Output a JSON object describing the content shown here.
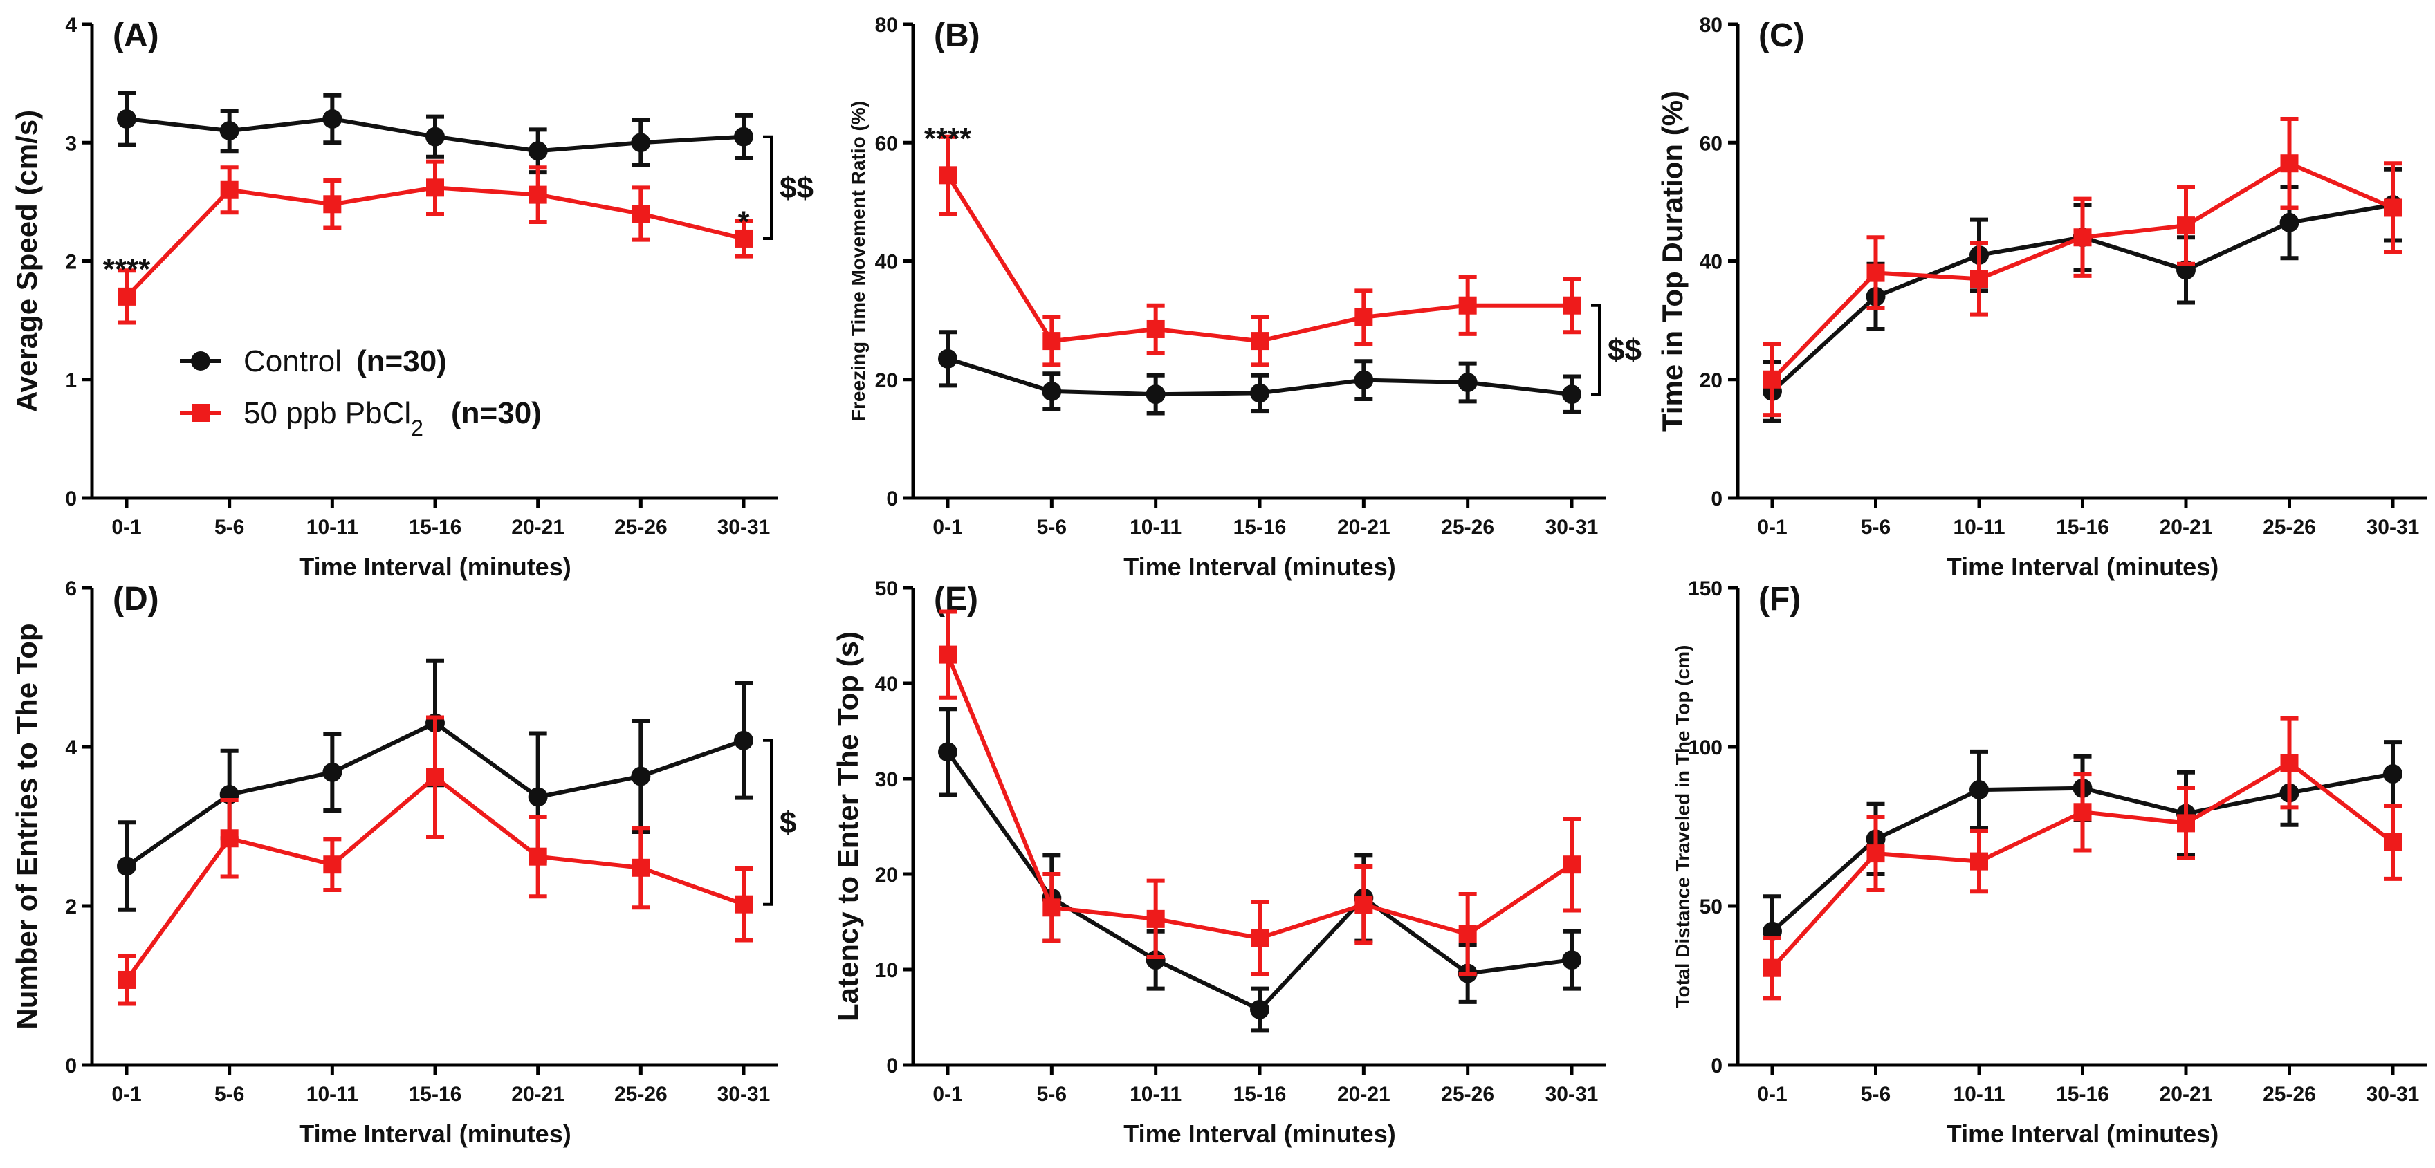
{
  "colors": {
    "control": "#111111",
    "lead": "#ee1b1b"
  },
  "legend": {
    "control_label": "Control",
    "control_n": "(n=30)",
    "lead_label_prefix": "50 ppb PbCl",
    "lead_label_sub": "2",
    "lead_n": "(n=30)"
  },
  "chart_data": [
    {
      "id": "A",
      "type": "line",
      "panel_label": "(A)",
      "xlabel": "Time Interval (minutes)",
      "ylabel": "Average Speed (cm/s)",
      "ylim": [
        0,
        4
      ],
      "yticks": [
        "0",
        "1",
        "2",
        "3",
        "4"
      ],
      "categories": [
        "0-1",
        "5-6",
        "10-11",
        "15-16",
        "20-21",
        "25-26",
        "30-31"
      ],
      "series": [
        {
          "name": "Control",
          "values": [
            3.2,
            3.1,
            3.2,
            3.05,
            2.93,
            3.0,
            3.05
          ],
          "errors": [
            0.22,
            0.17,
            0.2,
            0.17,
            0.18,
            0.19,
            0.18
          ]
        },
        {
          "name": "50 ppb PbCl2",
          "values": [
            1.7,
            2.6,
            2.48,
            2.62,
            2.56,
            2.4,
            2.19
          ],
          "errors": [
            0.22,
            0.19,
            0.2,
            0.22,
            0.23,
            0.22,
            0.15
          ]
        }
      ],
      "annotations": [
        {
          "text": "****",
          "category_index": 0,
          "y": 2.02
        },
        {
          "text": "*",
          "category_index": 6,
          "y": 2.42
        }
      ],
      "bracket": {
        "text": "$$",
        "y_top": 3.05,
        "y_bottom": 2.19
      }
    },
    {
      "id": "B",
      "type": "line",
      "panel_label": "(B)",
      "xlabel": "Time Interval (minutes)",
      "ylabel": "Freezing Time Movement Ratio (%)",
      "ylim": [
        0,
        80
      ],
      "yticks": [
        "0",
        "20",
        "40",
        "60",
        "80"
      ],
      "categories": [
        "0-1",
        "5-6",
        "10-11",
        "15-16",
        "20-21",
        "25-26",
        "30-31"
      ],
      "series": [
        {
          "name": "Control",
          "values": [
            23.5,
            18.0,
            17.5,
            17.7,
            19.9,
            19.5,
            17.5
          ],
          "errors": [
            4.5,
            3.0,
            3.2,
            3.0,
            3.2,
            3.2,
            3.0
          ]
        },
        {
          "name": "50 ppb PbCl2",
          "values": [
            54.5,
            26.5,
            28.5,
            26.5,
            30.5,
            32.5,
            32.5
          ],
          "errors": [
            6.5,
            4.0,
            4.0,
            4.0,
            4.5,
            4.8,
            4.5
          ]
        }
      ],
      "annotations": [
        {
          "text": "****",
          "category_index": 0,
          "y": 62.5
        }
      ],
      "bracket": {
        "text": "$$",
        "y_top": 32.5,
        "y_bottom": 17.5
      }
    },
    {
      "id": "C",
      "type": "line",
      "panel_label": "(C)",
      "xlabel": "Time Interval (minutes)",
      "ylabel": "Time in Top Duration (%)",
      "ylim": [
        0,
        80
      ],
      "yticks": [
        "0",
        "20",
        "40",
        "60",
        "80"
      ],
      "categories": [
        "0-1",
        "5-6",
        "10-11",
        "15-16",
        "20-21",
        "25-26",
        "30-31"
      ],
      "series": [
        {
          "name": "Control",
          "values": [
            18.0,
            34.0,
            41.0,
            44.0,
            38.5,
            46.5,
            49.5
          ],
          "errors": [
            5.0,
            5.5,
            6.0,
            5.5,
            5.5,
            6.0,
            6.0
          ]
        },
        {
          "name": "50 ppb PbCl2",
          "values": [
            20.0,
            38.0,
            37.0,
            44.0,
            46.0,
            56.5,
            49.0
          ],
          "errors": [
            6.0,
            6.0,
            6.0,
            6.5,
            6.5,
            7.5,
            7.5
          ]
        }
      ],
      "annotations": []
    },
    {
      "id": "D",
      "type": "line",
      "panel_label": "(D)",
      "xlabel": "Time Interval (minutes)",
      "ylabel": "Number of Entries to The Top",
      "ylim": [
        0,
        6
      ],
      "yticks": [
        "0",
        "2",
        "4",
        "6"
      ],
      "categories": [
        "0-1",
        "5-6",
        "10-11",
        "15-16",
        "20-21",
        "25-26",
        "30-31"
      ],
      "series": [
        {
          "name": "Control",
          "values": [
            2.5,
            3.4,
            3.68,
            4.3,
            3.37,
            3.63,
            4.08
          ],
          "errors": [
            0.55,
            0.55,
            0.48,
            0.78,
            0.8,
            0.7,
            0.72
          ]
        },
        {
          "name": "50 ppb PbCl2",
          "values": [
            1.07,
            2.85,
            2.52,
            3.62,
            2.62,
            2.48,
            2.02
          ],
          "errors": [
            0.3,
            0.48,
            0.32,
            0.75,
            0.5,
            0.5,
            0.45
          ]
        }
      ],
      "annotations": [],
      "bracket": {
        "text": "$",
        "y_top": 4.08,
        "y_bottom": 2.02
      }
    },
    {
      "id": "E",
      "type": "line",
      "panel_label": "(E)",
      "xlabel": "Time Interval (minutes)",
      "ylabel": "Latency to Enter The Top (s)",
      "ylim": [
        0,
        50
      ],
      "yticks": [
        "0",
        "10",
        "20",
        "30",
        "40",
        "50"
      ],
      "categories": [
        "0-1",
        "5-6",
        "10-11",
        "15-16",
        "20-21",
        "25-26",
        "30-31"
      ],
      "series": [
        {
          "name": "Control",
          "values": [
            32.8,
            17.5,
            11.0,
            5.8,
            17.5,
            9.6,
            11.0
          ],
          "errors": [
            4.5,
            4.5,
            3.0,
            2.2,
            4.5,
            3.0,
            3.0
          ]
        },
        {
          "name": "50 ppb PbCl2",
          "values": [
            43.0,
            16.5,
            15.3,
            13.3,
            16.8,
            13.7,
            21.0
          ],
          "errors": [
            4.5,
            3.5,
            4.0,
            3.8,
            4.0,
            4.2,
            4.8
          ]
        }
      ],
      "annotations": []
    },
    {
      "id": "F",
      "type": "line",
      "panel_label": "(F)",
      "xlabel": "Time Interval (minutes)",
      "ylabel": "Total Distance Traveled in The Top (cm)",
      "ylim": [
        0,
        150
      ],
      "yticks": [
        "0",
        "50",
        "100",
        "150"
      ],
      "categories": [
        "0-1",
        "5-6",
        "10-11",
        "15-16",
        "20-21",
        "25-26",
        "30-31"
      ],
      "series": [
        {
          "name": "Control",
          "values": [
            42.0,
            71.0,
            86.5,
            87.0,
            79.0,
            85.5,
            91.5
          ],
          "errors": [
            11.0,
            11.0,
            12.0,
            10.0,
            13.0,
            10.0,
            10.0
          ]
        },
        {
          "name": "50 ppb PbCl2",
          "values": [
            30.5,
            66.5,
            64.0,
            79.5,
            76.0,
            95.0,
            70.0
          ],
          "errors": [
            9.5,
            11.5,
            9.5,
            12.0,
            11.0,
            14.0,
            11.5
          ]
        }
      ],
      "annotations": []
    }
  ]
}
